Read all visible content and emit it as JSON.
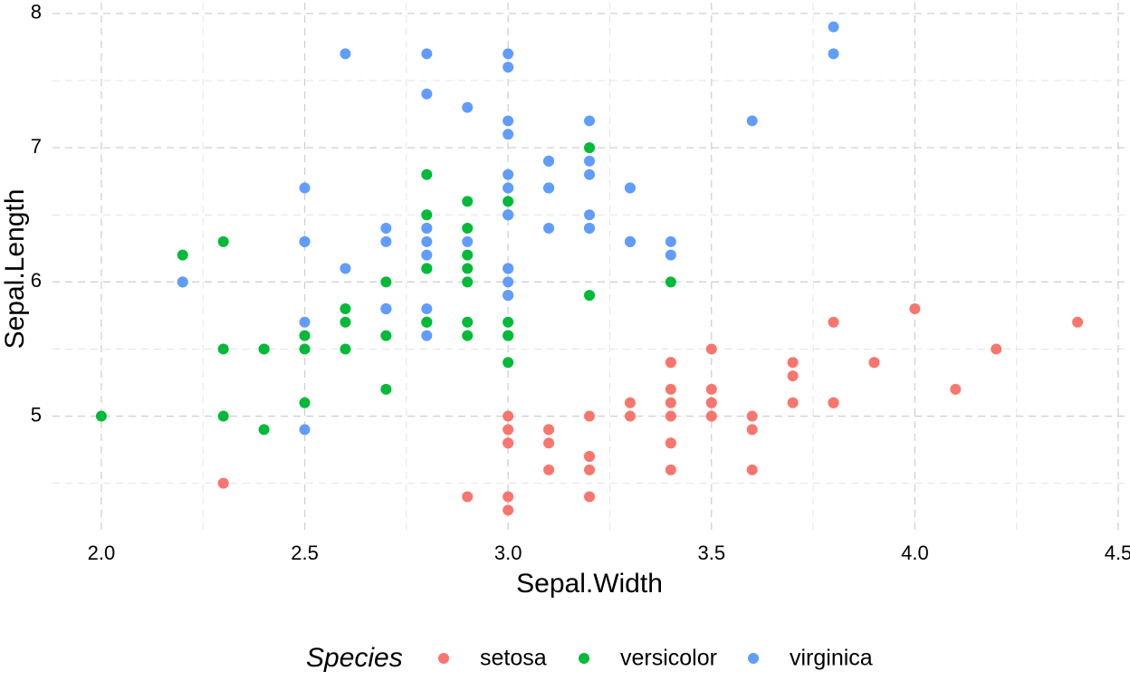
{
  "chart_data": {
    "type": "scatter",
    "xlabel": "Sepal.Width",
    "ylabel": "Sepal.Length",
    "legend_title": "Species",
    "xlim": [
      1.88,
      4.52
    ],
    "ylim": [
      4.12,
      8.08
    ],
    "xticks": [
      {
        "value": 2,
        "label": "2.0"
      },
      {
        "value": 2.5,
        "label": "2.5"
      },
      {
        "value": 3,
        "label": "3.0"
      },
      {
        "value": 3.5,
        "label": "3.5"
      },
      {
        "value": 4,
        "label": "4.0"
      },
      {
        "value": 4.5,
        "label": "4.5"
      }
    ],
    "yticks": [
      5,
      6,
      7,
      8
    ],
    "xminor": [
      2.25,
      2.75,
      3.25,
      3.75,
      4.25
    ],
    "yminor": [
      4.5,
      5.5,
      6.5,
      7.5
    ],
    "grid": true,
    "legend": "bottom",
    "series": [
      {
        "name": "setosa",
        "color": "#F8766D",
        "x": [
          3.5,
          3.0,
          3.2,
          3.1,
          3.6,
          3.9,
          3.4,
          3.4,
          2.9,
          3.1,
          3.7,
          3.4,
          3.0,
          3.0,
          4.0,
          4.4,
          3.9,
          3.5,
          3.8,
          3.8,
          3.4,
          3.7,
          3.6,
          3.3,
          3.4,
          3.0,
          3.4,
          3.5,
          3.4,
          3.2,
          3.1,
          3.4,
          4.1,
          4.2,
          3.1,
          3.2,
          3.5,
          3.6,
          3.0,
          3.4,
          3.5,
          2.3,
          3.2,
          3.5,
          3.8,
          3.0,
          3.8,
          3.2,
          3.7,
          3.3
        ],
        "values": [
          5.1,
          4.9,
          4.7,
          4.6,
          5.0,
          5.4,
          4.6,
          5.0,
          4.4,
          4.9,
          5.4,
          4.8,
          4.8,
          4.3,
          5.8,
          5.7,
          5.4,
          5.1,
          5.7,
          5.1,
          5.4,
          5.1,
          4.6,
          5.1,
          4.8,
          5.0,
          5.0,
          5.2,
          5.2,
          4.7,
          4.8,
          5.4,
          5.2,
          5.5,
          4.9,
          5.0,
          5.5,
          4.9,
          4.4,
          5.1,
          5.0,
          4.5,
          4.4,
          5.0,
          5.1,
          4.8,
          5.1,
          4.6,
          5.3,
          5.0
        ]
      },
      {
        "name": "versicolor",
        "color": "#00BA38",
        "x": [
          3.2,
          3.2,
          3.1,
          2.3,
          2.8,
          2.8,
          3.3,
          2.4,
          2.9,
          2.7,
          2.0,
          3.0,
          2.2,
          2.9,
          2.9,
          3.1,
          3.0,
          2.7,
          2.2,
          2.5,
          3.2,
          2.8,
          2.5,
          2.8,
          2.9,
          3.0,
          2.8,
          3.0,
          2.9,
          2.6,
          2.4,
          2.4,
          2.7,
          2.7,
          3.0,
          3.4,
          3.1,
          2.3,
          3.0,
          2.5,
          2.6,
          3.0,
          2.6,
          2.3,
          2.7,
          3.0,
          2.9,
          2.9,
          2.5,
          2.8
        ],
        "values": [
          7.0,
          6.4,
          6.9,
          5.5,
          6.5,
          5.7,
          6.3,
          4.9,
          6.6,
          5.2,
          5.0,
          5.9,
          6.0,
          6.1,
          5.6,
          6.7,
          5.6,
          5.8,
          6.2,
          5.6,
          5.9,
          6.1,
          6.3,
          6.1,
          6.4,
          6.6,
          6.8,
          6.7,
          6.0,
          5.7,
          5.5,
          5.5,
          5.8,
          6.0,
          5.4,
          6.0,
          6.7,
          6.3,
          5.6,
          5.5,
          5.5,
          6.1,
          5.8,
          5.0,
          5.6,
          5.7,
          5.7,
          6.2,
          5.1,
          5.7
        ]
      },
      {
        "name": "virginica",
        "color": "#619CFF",
        "x": [
          3.3,
          2.7,
          3.0,
          2.9,
          3.0,
          3.0,
          2.5,
          2.9,
          2.5,
          3.6,
          3.2,
          2.7,
          3.0,
          2.5,
          2.8,
          3.2,
          3.0,
          3.8,
          2.6,
          2.2,
          3.2,
          2.8,
          2.8,
          2.7,
          3.3,
          3.2,
          2.8,
          3.0,
          2.8,
          3.0,
          2.8,
          3.8,
          2.8,
          2.8,
          2.6,
          3.0,
          3.4,
          3.1,
          3.0,
          3.1,
          3.1,
          3.1,
          2.7,
          3.2,
          3.3,
          3.0,
          2.5,
          3.0,
          3.4,
          3.0
        ],
        "values": [
          6.3,
          5.8,
          7.1,
          6.3,
          6.5,
          7.6,
          4.9,
          7.3,
          6.7,
          7.2,
          6.5,
          6.4,
          6.8,
          5.7,
          5.8,
          6.4,
          6.5,
          7.7,
          7.7,
          6.0,
          6.9,
          5.6,
          7.7,
          6.3,
          6.7,
          7.2,
          6.2,
          6.1,
          6.4,
          7.2,
          7.4,
          7.9,
          6.4,
          6.3,
          6.1,
          7.7,
          6.3,
          6.4,
          6.0,
          6.9,
          6.7,
          6.9,
          5.8,
          6.8,
          6.7,
          6.7,
          6.3,
          6.5,
          6.2,
          5.9
        ]
      }
    ]
  }
}
